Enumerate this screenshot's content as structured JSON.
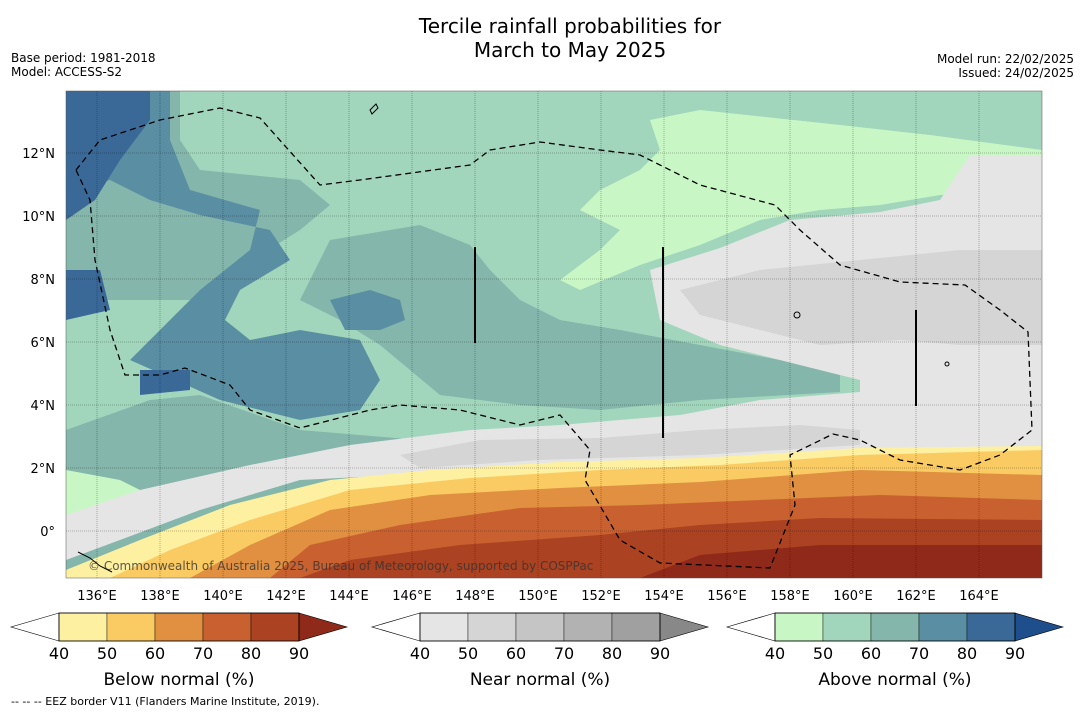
{
  "title_line1": "Tercile rainfall probabilities for",
  "title_line2": "March to May 2025",
  "base_period": "Base period: 1981-2018",
  "model": "Model: ACCESS-S2",
  "model_run": "Model run: 22/02/2025",
  "issued": "Issued: 24/02/2025",
  "map": {
    "lat_labels": [
      "12°N",
      "10°N",
      "8°N",
      "6°N",
      "4°N",
      "2°N",
      "0°"
    ],
    "lon_labels": [
      "136°E",
      "138°E",
      "140°E",
      "142°E",
      "144°E",
      "146°E",
      "148°E",
      "150°E",
      "152°E",
      "154°E",
      "156°E",
      "158°E",
      "160°E",
      "162°E",
      "164°E"
    ],
    "credit": "© Commonwealth of Australia 2025, Bureau of Meteorology, supported by COSPPac",
    "colors": {
      "below": [
        "#fdf0a0",
        "#fbcb63",
        "#e09040",
        "#c96030",
        "#ab4222",
        "#8f2a1a"
      ],
      "near": [
        "#e5e5e5",
        "#d5d5d5",
        "#c5c5c5",
        "#b2b2b2",
        "#a0a0a0",
        "#888888"
      ],
      "above": [
        "#c8f7c5",
        "#a2d6bc",
        "#84b6ab",
        "#5a8fa3",
        "#3a6997",
        "#1f4e8c"
      ]
    }
  },
  "colorbars": [
    {
      "name": "below",
      "title": "Below normal (%)",
      "ticks": [
        "40",
        "50",
        "60",
        "70",
        "80",
        "90"
      ]
    },
    {
      "name": "near",
      "title": "Near normal (%)",
      "ticks": [
        "40",
        "50",
        "60",
        "70",
        "80",
        "90"
      ]
    },
    {
      "name": "above",
      "title": "Above normal (%)",
      "ticks": [
        "40",
        "50",
        "60",
        "70",
        "80",
        "90"
      ]
    }
  ],
  "footnote": "-- -- -- EEZ border V11 (Flanders Marine Institute, 2019)."
}
